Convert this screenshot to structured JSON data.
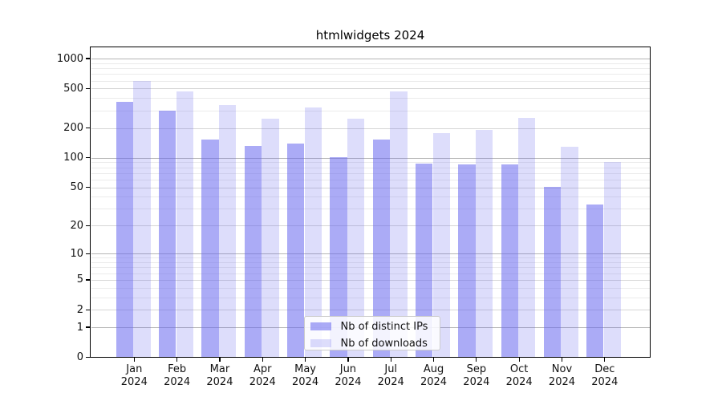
{
  "chart_data": {
    "type": "bar",
    "title": "htmlwidgets 2024",
    "categories": [
      "Jan",
      "Feb",
      "Mar",
      "Apr",
      "May",
      "Jun",
      "Jul",
      "Aug",
      "Sep",
      "Oct",
      "Nov",
      "Dec"
    ],
    "year_label": "2024",
    "series": [
      {
        "name": "Nb of distinct IPs",
        "color": "rgba(102,102,238,0.55)",
        "values": [
          370,
          300,
          154,
          132,
          140,
          101,
          154,
          88,
          85,
          85,
          51,
          33
        ]
      },
      {
        "name": "Nb of downloads",
        "color": "rgba(102,102,238,0.22)",
        "values": [
          600,
          470,
          340,
          247,
          320,
          250,
          470,
          178,
          190,
          255,
          130,
          90
        ]
      }
    ],
    "yticks": [
      0,
      1,
      2,
      5,
      10,
      20,
      50,
      100,
      200,
      500,
      1000
    ],
    "ylim": [
      0,
      1300
    ],
    "scale": "log1p",
    "xlabel": "",
    "ylabel": "",
    "grid": "major+minor-horizontal",
    "legend_position": "bottom-center",
    "colors": {
      "decade_gridline": "#b5b5b5",
      "major_gridline": "#d5d5d5",
      "minor_gridline": "#ebebeb",
      "spine": "#000000",
      "text": "#111111"
    }
  }
}
